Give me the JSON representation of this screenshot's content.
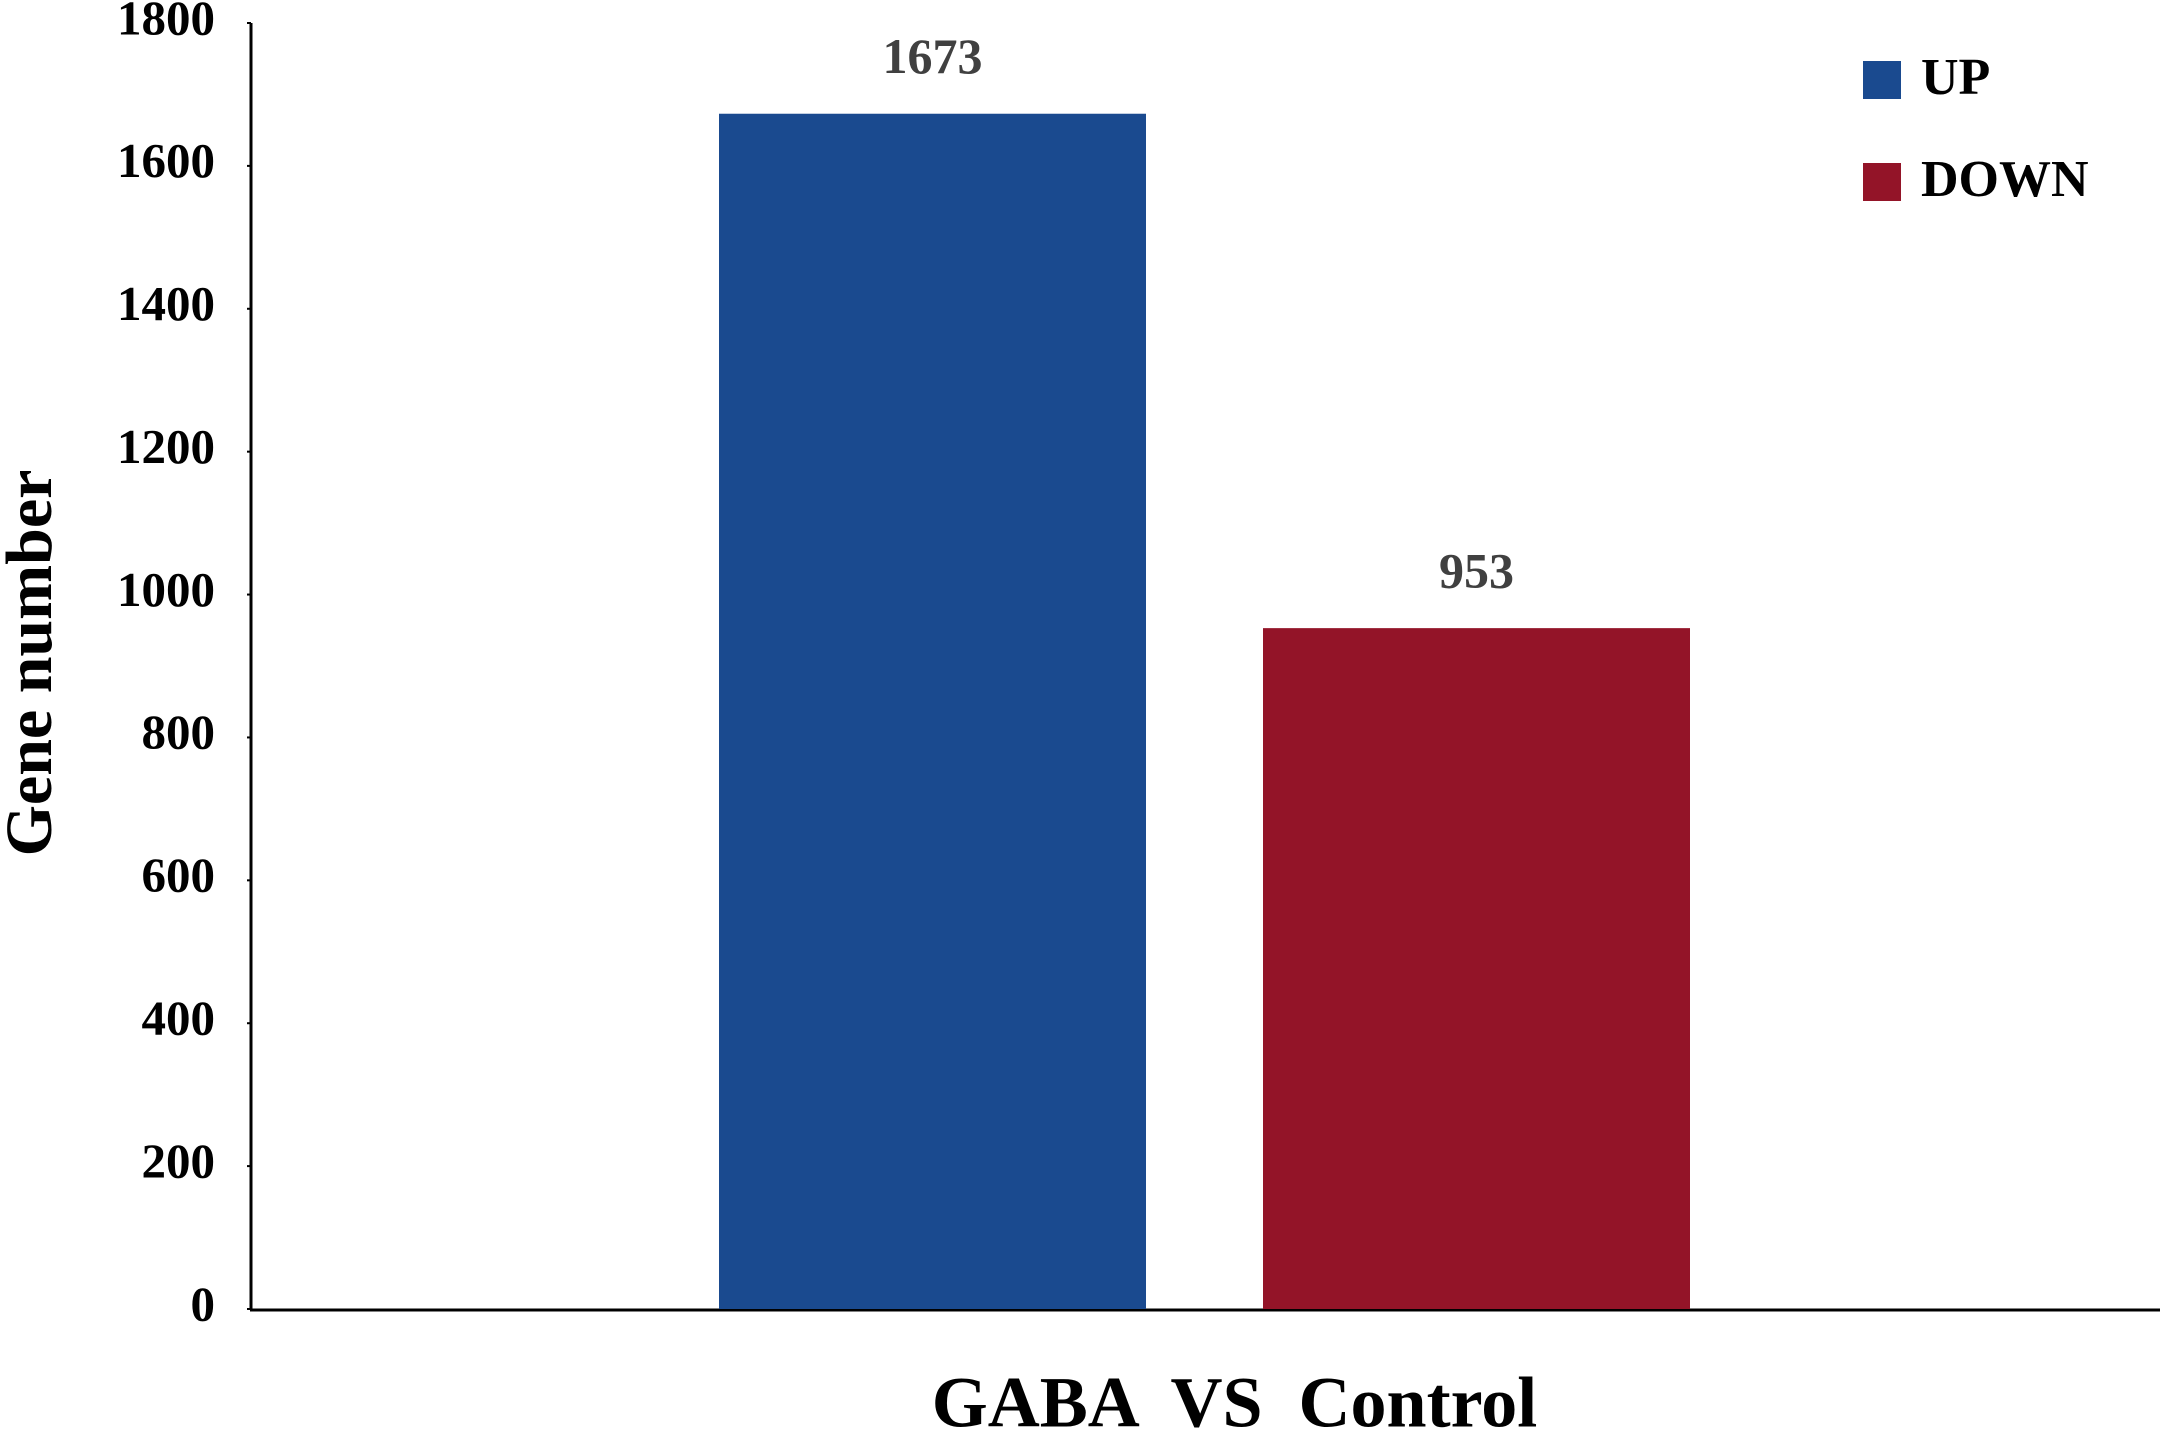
{
  "chart_data": {
    "type": "bar",
    "y_label": "Gene number",
    "categories": [
      "GABA  VS  Control"
    ],
    "series": [
      {
        "name": "UP",
        "color": "#1a4a8f",
        "values": [
          1673
        ]
      },
      {
        "name": "DOWN",
        "color": "#931428",
        "values": [
          953
        ]
      }
    ],
    "ylim": [
      0,
      1800
    ],
    "yticks": [
      0,
      200,
      400,
      600,
      800,
      1000,
      1200,
      1400,
      1600,
      1800
    ],
    "grid": false,
    "legend": "top-right"
  }
}
